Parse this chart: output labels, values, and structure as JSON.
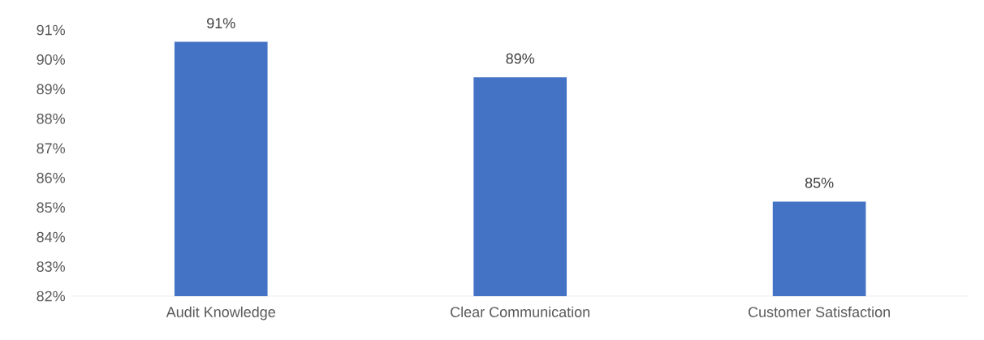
{
  "chart_data": {
    "type": "bar",
    "categories": [
      "Audit Knowledge",
      "Clear Communication",
      "Customer Satisfaction"
    ],
    "values": [
      90.6,
      89.4,
      85.2
    ],
    "value_labels": [
      "91%",
      "89%",
      "85%"
    ],
    "color": "#4472c4",
    "ylim": [
      82,
      91
    ],
    "yticks": [
      {
        "value": 82,
        "label": "82%"
      },
      {
        "value": 83,
        "label": "83%"
      },
      {
        "value": 84,
        "label": "84%"
      },
      {
        "value": 85,
        "label": "85%"
      },
      {
        "value": 86,
        "label": "86%"
      },
      {
        "value": 87,
        "label": "87%"
      },
      {
        "value": 88,
        "label": "88%"
      },
      {
        "value": 89,
        "label": "89%"
      },
      {
        "value": 90,
        "label": "90%"
      },
      {
        "value": 91,
        "label": "91%"
      }
    ]
  }
}
